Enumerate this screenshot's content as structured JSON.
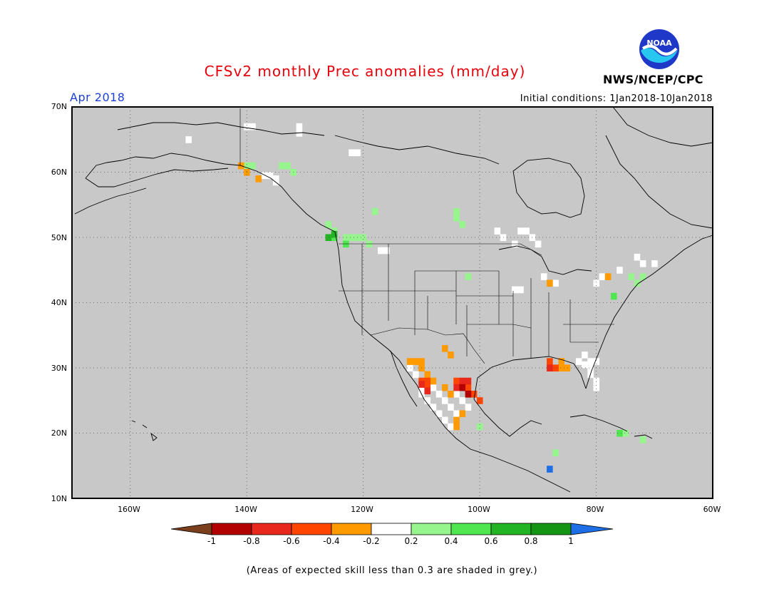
{
  "header": {
    "title": "CFSv2 monthly Prec anomalies (mm/day)",
    "month": "Apr 2018",
    "initial_conditions": "Initial conditions: 1Jan2018-10Jan2018",
    "agency": "NWS/NCEP/CPC",
    "logo_text": "NOAA"
  },
  "axes": {
    "latitudes": [
      "70N",
      "60N",
      "50N",
      "40N",
      "30N",
      "20N",
      "10N"
    ],
    "longitudes": [
      "160W",
      "140W",
      "120W",
      "100W",
      "80W",
      "60W"
    ]
  },
  "colorbar": {
    "labels": [
      "-1",
      "-0.8",
      "-0.6",
      "-0.4",
      "-0.2",
      "0.2",
      "0.4",
      "0.6",
      "0.8",
      "1"
    ],
    "colors": [
      "#7b3f1e",
      "#b30000",
      "#e8281c",
      "#ff4500",
      "#ff9a00",
      "#ffffff",
      "#96f58c",
      "#50e650",
      "#23b423",
      "#149614",
      "#1e6ee6"
    ]
  },
  "map": {
    "background": "#c8c8c8",
    "land_grey": "#c8c8c8",
    "lon_range": [
      -170,
      -60
    ],
    "lat_range": [
      10,
      70
    ]
  },
  "footer": {
    "note": "(Areas of expected skill less than 0.3 are shaded in grey.)"
  }
}
